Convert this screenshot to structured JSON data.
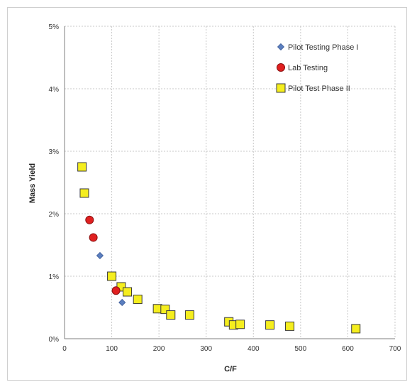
{
  "chart_data": {
    "type": "scatter",
    "title": "",
    "xlabel": "C/F",
    "ylabel": "Mass Yield",
    "xlim": [
      0,
      700
    ],
    "ylim": [
      0,
      5
    ],
    "x_ticks": [
      0,
      100,
      200,
      300,
      400,
      500,
      600,
      700
    ],
    "y_ticks": [
      0,
      1,
      2,
      3,
      4,
      5
    ],
    "x_tick_labels": [
      "0",
      "100",
      "200",
      "300",
      "400",
      "500",
      "600",
      "700"
    ],
    "y_tick_labels": [
      "0%",
      "1%",
      "2%",
      "3%",
      "4%",
      "5%"
    ],
    "grid": true,
    "legend_position": "top-right",
    "series": [
      {
        "name": "Pilot Testing Phase I",
        "marker": "diamond",
        "color": "#5b7fbf",
        "points": [
          [
            75,
            1.33
          ],
          [
            122,
            0.58
          ]
        ]
      },
      {
        "name": "Lab Testing",
        "marker": "circle",
        "color": "#e02020",
        "points": [
          [
            53,
            1.9
          ],
          [
            61,
            1.62
          ],
          [
            109,
            0.77
          ]
        ]
      },
      {
        "name": "Pilot Test Phase II",
        "marker": "square",
        "color": "#f5ee1e",
        "points": [
          [
            37,
            2.75
          ],
          [
            42,
            2.33
          ],
          [
            100,
            1.0
          ],
          [
            120,
            0.83
          ],
          [
            133,
            0.75
          ],
          [
            155,
            0.63
          ],
          [
            197,
            0.48
          ],
          [
            213,
            0.47
          ],
          [
            225,
            0.38
          ],
          [
            265,
            0.38
          ],
          [
            348,
            0.27
          ],
          [
            358,
            0.22
          ],
          [
            372,
            0.23
          ],
          [
            435,
            0.22
          ],
          [
            477,
            0.2
          ],
          [
            617,
            0.16
          ]
        ]
      }
    ]
  }
}
